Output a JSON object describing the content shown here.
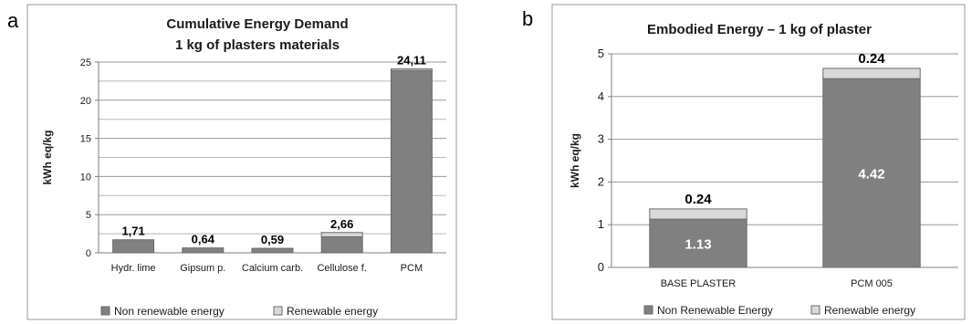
{
  "panel_a": {
    "letter": "a",
    "chart_data": {
      "type": "bar",
      "stacked": true,
      "title_lines": [
        "Cumulative Energy Demand",
        "1 kg of plasters materials"
      ],
      "ylabel": "kWh eq/kg",
      "xlabel": "",
      "ylim": [
        0,
        25
      ],
      "yticks": [
        0,
        5,
        10,
        15,
        20,
        25
      ],
      "grid": true,
      "categories": [
        "Hydr. lime",
        "Gipsum p.",
        "Calcium carb.",
        "Cellulose f.",
        "PCM"
      ],
      "series": [
        {
          "name": "Non renewable energy",
          "color": "#808080",
          "values": [
            1.71,
            0.64,
            0.59,
            2.1,
            23.9
          ]
        },
        {
          "name": "Renewable energy",
          "color": "#d9d9d9",
          "values": [
            0.0,
            0.0,
            0.0,
            0.56,
            0.21
          ]
        }
      ],
      "total_labels": [
        "1,71",
        "0,64",
        "0,59",
        "2,66",
        "24,11"
      ],
      "legend_position": "bottom"
    }
  },
  "panel_b": {
    "letter": "b",
    "chart_data": {
      "type": "bar",
      "stacked": true,
      "title_lines": [
        "Embodied Energy – 1 kg of plaster"
      ],
      "ylabel": "kWh eq/kg",
      "xlabel": "",
      "ylim": [
        0,
        5
      ],
      "yticks": [
        0,
        1,
        2,
        3,
        4,
        5
      ],
      "grid": true,
      "categories": [
        "BASE PLASTER",
        "PCM 005"
      ],
      "series": [
        {
          "name": "Non Renewable Energy",
          "color": "#808080",
          "values": [
            1.13,
            4.42
          ],
          "labels": [
            "1.13",
            "4.42"
          ]
        },
        {
          "name": "Renewable energy",
          "color": "#d9d9d9",
          "values": [
            0.24,
            0.24
          ],
          "labels": [
            "0.24",
            "0.24"
          ]
        }
      ],
      "legend_position": "bottom"
    }
  }
}
